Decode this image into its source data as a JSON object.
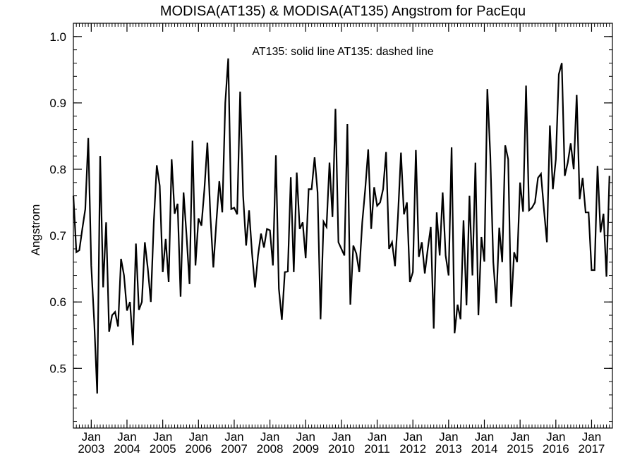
{
  "chart_data": {
    "type": "line",
    "title": "MODISA(AT135) & MODISA(AT135)  Angstrom for PacEqu",
    "ylabel": "Angstrom",
    "xlabel": "",
    "annotation": "AT135: solid line   AT135: dashed line",
    "ylim": [
      0.41,
      1.02
    ],
    "xlim": [
      "2002-07",
      "2017-08"
    ],
    "yticks": [
      0.5,
      0.6,
      0.7,
      0.8,
      0.9,
      1.0
    ],
    "ytick_labels": [
      "0.5",
      "0.6",
      "0.7",
      "0.8",
      "0.9",
      "1.0"
    ],
    "xticks": [
      {
        "month": "Jan",
        "year": "2003",
        "date": "2003-01"
      },
      {
        "month": "Jan",
        "year": "2004",
        "date": "2004-01"
      },
      {
        "month": "Jan",
        "year": "2005",
        "date": "2005-01"
      },
      {
        "month": "Jan",
        "year": "2006",
        "date": "2006-01"
      },
      {
        "month": "Jan",
        "year": "2007",
        "date": "2007-01"
      },
      {
        "month": "Jan",
        "year": "2008",
        "date": "2008-01"
      },
      {
        "month": "Jan",
        "year": "2009",
        "date": "2009-01"
      },
      {
        "month": "Jan",
        "year": "2010",
        "date": "2010-01"
      },
      {
        "month": "Jan",
        "year": "2011",
        "date": "2011-01"
      },
      {
        "month": "Jan",
        "year": "2012",
        "date": "2012-01"
      },
      {
        "month": "Jan",
        "year": "2013",
        "date": "2013-01"
      },
      {
        "month": "Jan",
        "year": "2014",
        "date": "2014-01"
      },
      {
        "month": "Jan",
        "year": "2015",
        "date": "2015-01"
      },
      {
        "month": "Jan",
        "year": "2016",
        "date": "2016-01"
      },
      {
        "month": "Jan",
        "year": "2017",
        "date": "2017-01"
      }
    ],
    "grid": false,
    "line_color": "#000000",
    "series": [
      {
        "style": "solid",
        "x": [
          "2002-07",
          "2002-08",
          "2002-09",
          "2002-10",
          "2002-11",
          "2002-12",
          "2003-01",
          "2003-02",
          "2003-03",
          "2003-04",
          "2003-05",
          "2003-06",
          "2003-07",
          "2003-08",
          "2003-09",
          "2003-10",
          "2003-11",
          "2003-12",
          "2004-01",
          "2004-02",
          "2004-03",
          "2004-04",
          "2004-05",
          "2004-06",
          "2004-07",
          "2004-08",
          "2004-09",
          "2004-10",
          "2004-11",
          "2004-12",
          "2005-01",
          "2005-02",
          "2005-03",
          "2005-04",
          "2005-05",
          "2005-06",
          "2005-07",
          "2005-08",
          "2005-09",
          "2005-10",
          "2005-11",
          "2005-12",
          "2006-01",
          "2006-02",
          "2006-03",
          "2006-04",
          "2006-05",
          "2006-06",
          "2006-07",
          "2006-08",
          "2006-09",
          "2006-10",
          "2006-11",
          "2006-12",
          "2007-01",
          "2007-02",
          "2007-03",
          "2007-04",
          "2007-05",
          "2007-06",
          "2007-07",
          "2007-08",
          "2007-09",
          "2007-10",
          "2007-11",
          "2007-12",
          "2008-01",
          "2008-02",
          "2008-03",
          "2008-04",
          "2008-05",
          "2008-06",
          "2008-07",
          "2008-08",
          "2008-09",
          "2008-10",
          "2008-11",
          "2008-12",
          "2009-01",
          "2009-02",
          "2009-03",
          "2009-04",
          "2009-05",
          "2009-06",
          "2009-07",
          "2009-08",
          "2009-09",
          "2009-10",
          "2009-11",
          "2009-12",
          "2010-01",
          "2010-02",
          "2010-03",
          "2010-04",
          "2010-05",
          "2010-06",
          "2010-07",
          "2010-08",
          "2010-09",
          "2010-10",
          "2010-11",
          "2010-12",
          "2011-01",
          "2011-02",
          "2011-03",
          "2011-04",
          "2011-05",
          "2011-06",
          "2011-07",
          "2011-08",
          "2011-09",
          "2011-10",
          "2011-11",
          "2011-12",
          "2012-01",
          "2012-02",
          "2012-03",
          "2012-04",
          "2012-05",
          "2012-06",
          "2012-07",
          "2012-08",
          "2012-09",
          "2012-10",
          "2012-11",
          "2012-12",
          "2013-01",
          "2013-02",
          "2013-03",
          "2013-04",
          "2013-05",
          "2013-06",
          "2013-07",
          "2013-08",
          "2013-09",
          "2013-10",
          "2013-11",
          "2013-12",
          "2014-01",
          "2014-02",
          "2014-03",
          "2014-04",
          "2014-05",
          "2014-06",
          "2014-07",
          "2014-08",
          "2014-09",
          "2014-10",
          "2014-11",
          "2014-12",
          "2015-01",
          "2015-02",
          "2015-03",
          "2015-04",
          "2015-05",
          "2015-06",
          "2015-07",
          "2015-08",
          "2015-09",
          "2015-10",
          "2015-11",
          "2015-12",
          "2016-01",
          "2016-02",
          "2016-03",
          "2016-04",
          "2016-05",
          "2016-06",
          "2016-07",
          "2016-08",
          "2016-09",
          "2016-10",
          "2016-11",
          "2016-12",
          "2017-01",
          "2017-02",
          "2017-03",
          "2017-04",
          "2017-05",
          "2017-06",
          "2017-07"
        ],
        "y": [
          0.76,
          0.675,
          0.678,
          0.71,
          0.74,
          0.847,
          0.655,
          0.57,
          0.462,
          0.82,
          0.622,
          0.72,
          0.555,
          0.58,
          0.585,
          0.563,
          0.665,
          0.64,
          0.587,
          0.6,
          0.535,
          0.688,
          0.588,
          0.6,
          0.69,
          0.65,
          0.6,
          0.72,
          0.806,
          0.775,
          0.645,
          0.695,
          0.63,
          0.815,
          0.733,
          0.748,
          0.608,
          0.765,
          0.7,
          0.627,
          0.843,
          0.655,
          0.726,
          0.715,
          0.77,
          0.84,
          0.73,
          0.652,
          0.72,
          0.782,
          0.735,
          0.9,
          0.967,
          0.74,
          0.742,
          0.732,
          0.917,
          0.76,
          0.685,
          0.738,
          0.673,
          0.622,
          0.67,
          0.703,
          0.682,
          0.71,
          0.708,
          0.655,
          0.821,
          0.62,
          0.573,
          0.645,
          0.646,
          0.788,
          0.645,
          0.795,
          0.71,
          0.72,
          0.666,
          0.77,
          0.77,
          0.818,
          0.765,
          0.574,
          0.721,
          0.713,
          0.81,
          0.728,
          0.891,
          0.69,
          0.68,
          0.67,
          0.868,
          0.596,
          0.685,
          0.673,
          0.645,
          0.72,
          0.77,
          0.83,
          0.71,
          0.773,
          0.745,
          0.75,
          0.77,
          0.826,
          0.68,
          0.69,
          0.654,
          0.73,
          0.825,
          0.732,
          0.75,
          0.63,
          0.645,
          0.829,
          0.668,
          0.69,
          0.643,
          0.68,
          0.713,
          0.56,
          0.735,
          0.67,
          0.765,
          0.67,
          0.64,
          0.833,
          0.553,
          0.596,
          0.574,
          0.723,
          0.595,
          0.76,
          0.64,
          0.81,
          0.58,
          0.698,
          0.661,
          0.921,
          0.82,
          0.66,
          0.598,
          0.712,
          0.66,
          0.836,
          0.815,
          0.593,
          0.675,
          0.66,
          0.78,
          0.736,
          0.926,
          0.738,
          0.742,
          0.75,
          0.787,
          0.793,
          0.74,
          0.69,
          0.866,
          0.77,
          0.815,
          0.943,
          0.96,
          0.79,
          0.81,
          0.839,
          0.8,
          0.912,
          0.755,
          0.787,
          0.735,
          0.735,
          0.648,
          0.648,
          0.805,
          0.705,
          0.733,
          0.638,
          0.79
        ]
      }
    ]
  }
}
